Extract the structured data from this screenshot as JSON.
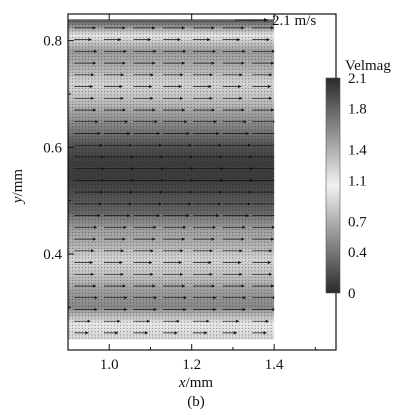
{
  "chart_data": {
    "type": "heatmap",
    "subtype": "vector-field-contour",
    "caption": "(b)",
    "xlabel_var": "x",
    "xlabel_unit": "/mm",
    "ylabel_var": "y",
    "ylabel_unit": "/mm",
    "xlim": [
      0.9,
      1.55
    ],
    "ylim": [
      0.22,
      0.85
    ],
    "x_ticks": [
      1.0,
      1.2,
      1.4
    ],
    "x_tick_labels": [
      "1.0",
      "1.2",
      "1.4"
    ],
    "y_ticks": [
      0.4,
      0.6,
      0.8
    ],
    "y_tick_labels": [
      "0.4",
      "0.6",
      "0.8"
    ],
    "field_extent": {
      "x": [
        0.9,
        1.4
      ],
      "y": [
        0.24,
        0.84
      ]
    },
    "field_profile": {
      "y": [
        0.24,
        0.27,
        0.3,
        0.33,
        0.36,
        0.39,
        0.42,
        0.45,
        0.48,
        0.51,
        0.54,
        0.57,
        0.6,
        0.63,
        0.66,
        0.69,
        0.72,
        0.75,
        0.78,
        0.81,
        0.84
      ],
      "velmag": [
        0.9,
        1.0,
        1.6,
        1.5,
        1.3,
        1.2,
        1.4,
        1.5,
        1.8,
        1.9,
        2.0,
        2.0,
        1.9,
        1.7,
        1.5,
        1.3,
        1.2,
        1.4,
        1.5,
        1.0,
        1.9
      ]
    },
    "reference_vector": {
      "label": "2.1 m/s",
      "value": 2.1
    },
    "colorbar": {
      "title": "Velmag",
      "ticks": [
        2.1,
        1.8,
        1.4,
        1.1,
        0.7,
        0.4,
        0
      ],
      "tick_labels": [
        "2.1",
        "1.8",
        "1.4",
        "1.1",
        "0.7",
        "0.4",
        "0"
      ],
      "range": [
        0,
        2.1
      ],
      "color_low": "#2a2a2a",
      "color_mid": "#f2f2f2",
      "color_high": "#2a2a2a"
    }
  }
}
